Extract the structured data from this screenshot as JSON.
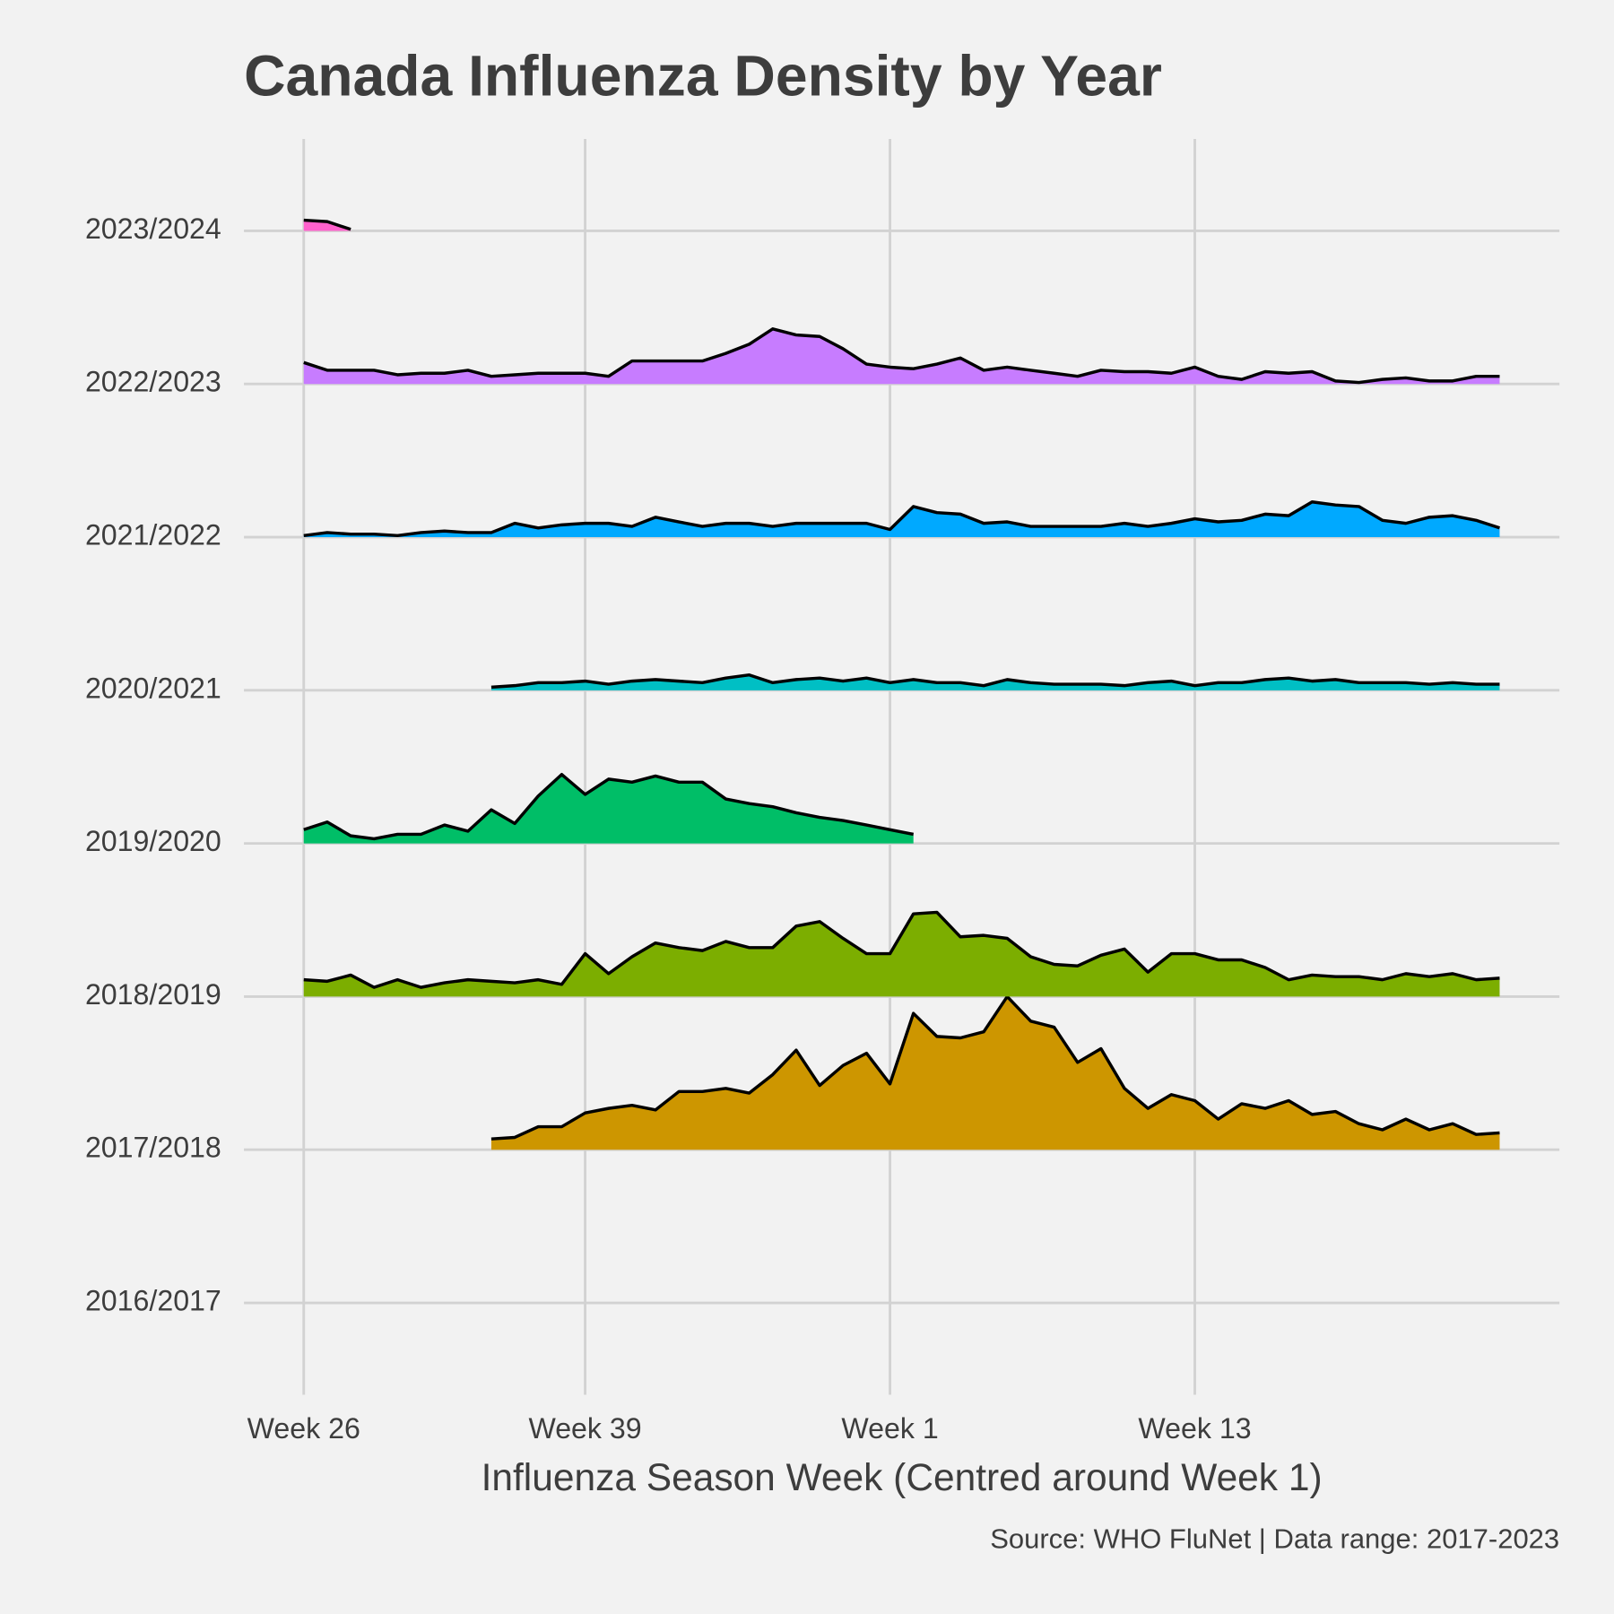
{
  "chart_data": {
    "type": "ridgeline",
    "title": "Canada Influenza Density by Year",
    "x_label": "Influenza Season Week (Centred around Week 1)",
    "caption": "Source: WHO FluNet | Data range: 2017-2023",
    "categories": [
      "2016/2017",
      "2017/2018",
      "2018/2019",
      "2019/2020",
      "2020/2021",
      "2021/2022",
      "2022/2023",
      "2023/2024"
    ],
    "x": [
      0,
      1,
      2,
      3,
      4,
      5,
      6,
      7,
      8,
      9,
      10,
      11,
      12,
      13,
      14,
      15,
      16,
      17,
      18,
      19,
      20,
      21,
      22,
      23,
      24,
      25,
      26,
      27,
      28,
      29,
      30,
      31,
      32,
      33,
      34,
      35,
      36,
      37,
      38,
      39,
      40,
      41,
      42,
      43,
      44,
      45,
      46,
      47,
      48,
      49,
      50,
      51
    ],
    "xlim": [
      -2.55,
      53.55
    ],
    "xticks": [
      {
        "value": 0,
        "label": "Week 26"
      },
      {
        "value": 12,
        "label": "Week 39"
      },
      {
        "value": 25,
        "label": "Week 1"
      },
      {
        "value": 38,
        "label": "Week 13"
      }
    ],
    "ylim": [
      -0.6,
      7.6
    ],
    "grid": true,
    "line_color": "#000000",
    "series": [
      {
        "name": "2017/2018",
        "color": "#CD9600",
        "values": [
          null,
          null,
          null,
          null,
          null,
          null,
          null,
          null,
          0.07,
          0.08,
          0.15,
          0.15,
          0.24,
          0.27,
          0.29,
          0.26,
          0.38,
          0.38,
          0.4,
          0.37,
          0.49,
          0.65,
          0.42,
          0.55,
          0.63,
          0.43,
          0.89,
          0.74,
          0.73,
          0.77,
          1.0,
          0.84,
          0.8,
          0.57,
          0.66,
          0.4,
          0.27,
          0.36,
          0.32,
          0.2,
          0.3,
          0.27,
          0.32,
          0.23,
          0.25,
          0.17,
          0.13,
          0.2,
          0.13,
          0.17,
          0.1,
          0.11
        ]
      },
      {
        "name": "2018/2019",
        "color": "#7CAE00",
        "values": [
          0.11,
          0.1,
          0.14,
          0.06,
          0.11,
          0.06,
          0.09,
          0.11,
          0.1,
          0.09,
          0.11,
          0.08,
          0.28,
          0.15,
          0.26,
          0.35,
          0.32,
          0.3,
          0.36,
          0.32,
          0.32,
          0.46,
          0.49,
          0.38,
          0.28,
          0.28,
          0.54,
          0.55,
          0.39,
          0.4,
          0.38,
          0.26,
          0.21,
          0.2,
          0.27,
          0.31,
          0.16,
          0.28,
          0.28,
          0.24,
          0.24,
          0.19,
          0.11,
          0.14,
          0.13,
          0.13,
          0.11,
          0.15,
          0.13,
          0.15,
          0.11,
          0.12
        ]
      },
      {
        "name": "2019/2020",
        "color": "#00BE67",
        "values": [
          0.09,
          0.14,
          0.05,
          0.03,
          0.06,
          0.06,
          0.12,
          0.08,
          0.22,
          0.13,
          0.31,
          0.45,
          0.32,
          0.42,
          0.4,
          0.44,
          0.4,
          0.4,
          0.29,
          0.26,
          0.24,
          0.2,
          0.17,
          0.15,
          0.12,
          0.09,
          0.06,
          null,
          null,
          null,
          null,
          null,
          null,
          null,
          null,
          null,
          null,
          null,
          null,
          null,
          null,
          null,
          null,
          null,
          null,
          null,
          null,
          null,
          null,
          null,
          null,
          null
        ]
      },
      {
        "name": "2020/2021",
        "color": "#00BFC4",
        "values": [
          null,
          null,
          null,
          null,
          null,
          null,
          null,
          null,
          0.02,
          0.03,
          0.05,
          0.05,
          0.06,
          0.04,
          0.06,
          0.07,
          0.06,
          0.05,
          0.08,
          0.1,
          0.05,
          0.07,
          0.08,
          0.06,
          0.08,
          0.05,
          0.07,
          0.05,
          0.05,
          0.03,
          0.07,
          0.05,
          0.04,
          0.04,
          0.04,
          0.03,
          0.05,
          0.06,
          0.03,
          0.05,
          0.05,
          0.07,
          0.08,
          0.06,
          0.07,
          0.05,
          0.05,
          0.05,
          0.04,
          0.05,
          0.04,
          0.04
        ]
      },
      {
        "name": "2021/2022",
        "color": "#00A9FF",
        "values": [
          0.01,
          0.03,
          0.02,
          0.02,
          0.01,
          0.03,
          0.04,
          0.03,
          0.03,
          0.09,
          0.06,
          0.08,
          0.09,
          0.09,
          0.07,
          0.13,
          0.1,
          0.07,
          0.09,
          0.09,
          0.07,
          0.09,
          0.09,
          0.09,
          0.09,
          0.05,
          0.2,
          0.16,
          0.15,
          0.09,
          0.1,
          0.07,
          0.07,
          0.07,
          0.07,
          0.09,
          0.07,
          0.09,
          0.12,
          0.1,
          0.11,
          0.15,
          0.14,
          0.23,
          0.21,
          0.2,
          0.11,
          0.09,
          0.13,
          0.14,
          0.11,
          0.06
        ]
      },
      {
        "name": "2022/2023",
        "color": "#C77CFF",
        "values": [
          0.14,
          0.09,
          0.09,
          0.09,
          0.06,
          0.07,
          0.07,
          0.09,
          0.05,
          0.06,
          0.07,
          0.07,
          0.07,
          0.05,
          0.15,
          0.15,
          0.15,
          0.15,
          0.2,
          0.26,
          0.36,
          0.32,
          0.31,
          0.23,
          0.13,
          0.11,
          0.1,
          0.13,
          0.17,
          0.09,
          0.11,
          0.09,
          0.07,
          0.05,
          0.09,
          0.08,
          0.08,
          0.07,
          0.11,
          0.05,
          0.03,
          0.08,
          0.07,
          0.08,
          0.02,
          0.01,
          0.03,
          0.04,
          0.02,
          0.02,
          0.05,
          0.05
        ]
      },
      {
        "name": "2023/2024",
        "color": "#FF61CC",
        "values": [
          0.07,
          0.06,
          0.01,
          null,
          null,
          null,
          null,
          null,
          null,
          null,
          null,
          null,
          null,
          null,
          null,
          null,
          null,
          null,
          null,
          null,
          null,
          null,
          null,
          null,
          null,
          null,
          null,
          null,
          null,
          null,
          null,
          null,
          null,
          null,
          null,
          null,
          null,
          null,
          null,
          null,
          null,
          null,
          null,
          null,
          null,
          null,
          null,
          null,
          null,
          null,
          null,
          null
        ]
      }
    ]
  }
}
